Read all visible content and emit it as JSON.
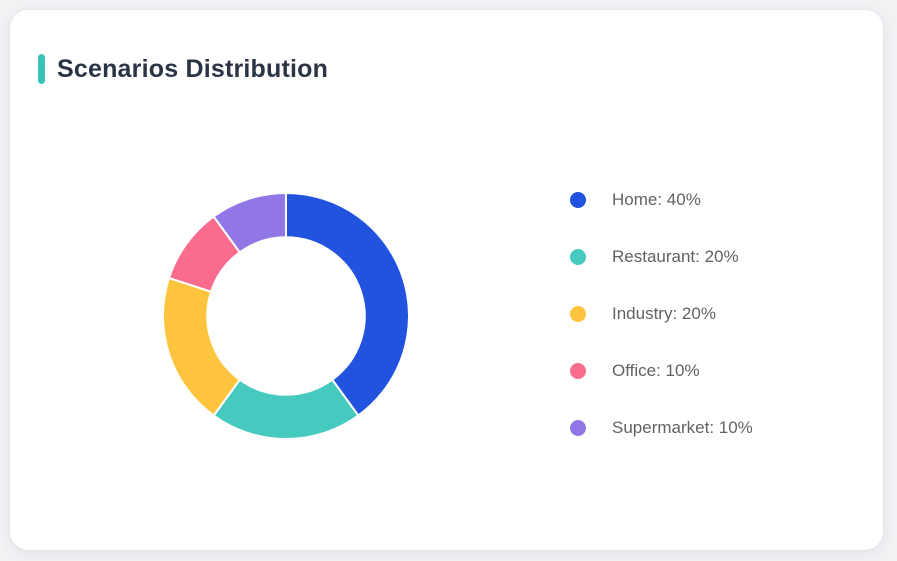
{
  "page": {
    "background_color": "#f1f2f4",
    "card_background_color": "#ffffff"
  },
  "header": {
    "title": "Scenarios Distribution",
    "accent_color": "#38c3b6"
  },
  "chart_data": {
    "type": "pie",
    "subtype": "donut",
    "title": "Scenarios Distribution",
    "start_angle_deg": -90,
    "direction": "clockwise",
    "inner_radius_ratio": 0.64,
    "legend_position": "right",
    "slice_gap_color": "#ffffff",
    "slices": [
      {
        "label": "Home",
        "value": 40,
        "color": "#2253df",
        "legend_text": "Home: 40%"
      },
      {
        "label": "Restaurant",
        "value": 20,
        "color": "#46cabf",
        "legend_text": "Restaurant: 20%"
      },
      {
        "label": "Industry",
        "value": 20,
        "color": "#ffc43d",
        "legend_text": "Industry: 20%"
      },
      {
        "label": "Office",
        "value": 10,
        "color": "#fa6c8d",
        "legend_text": "Office: 10%"
      },
      {
        "label": "Supermarket",
        "value": 10,
        "color": "#9177e5",
        "legend_text": "Supermarket: 10%"
      }
    ]
  }
}
